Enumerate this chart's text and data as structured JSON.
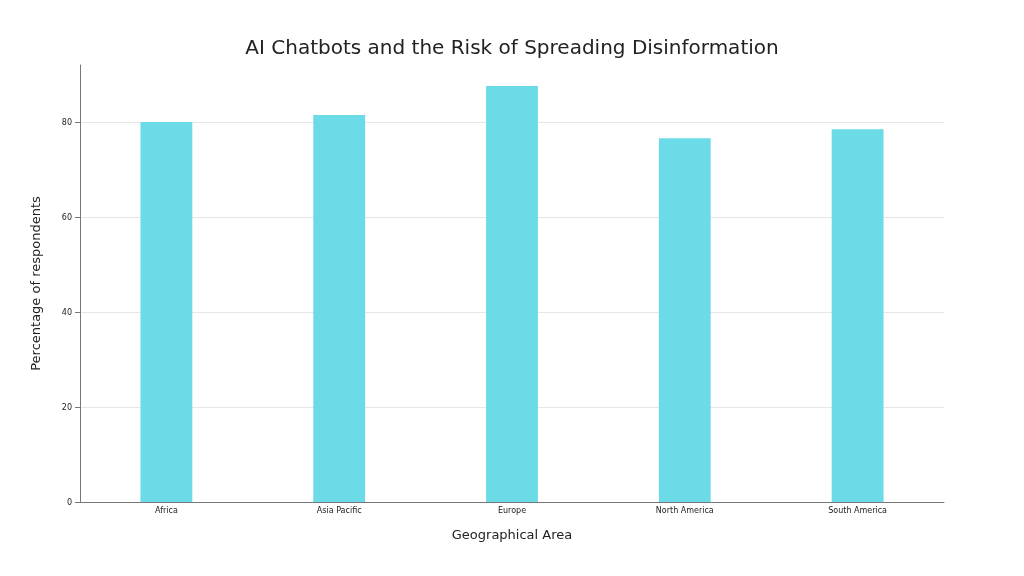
{
  "chart_data": {
    "type": "bar",
    "title": "AI Chatbots and the Risk of Spreading Disinformation",
    "xlabel": "Geographical Area",
    "ylabel": "Percentage of respondents",
    "categories": [
      "Africa",
      "Asia Pacific",
      "Europe",
      "North America",
      "South America"
    ],
    "values": [
      80,
      81.5,
      87.6,
      76.6,
      78.5
    ],
    "color": "#6adbe7",
    "ylim": [
      0,
      92
    ],
    "yticks": [
      0,
      20,
      40,
      60,
      80
    ],
    "grid": "y"
  }
}
